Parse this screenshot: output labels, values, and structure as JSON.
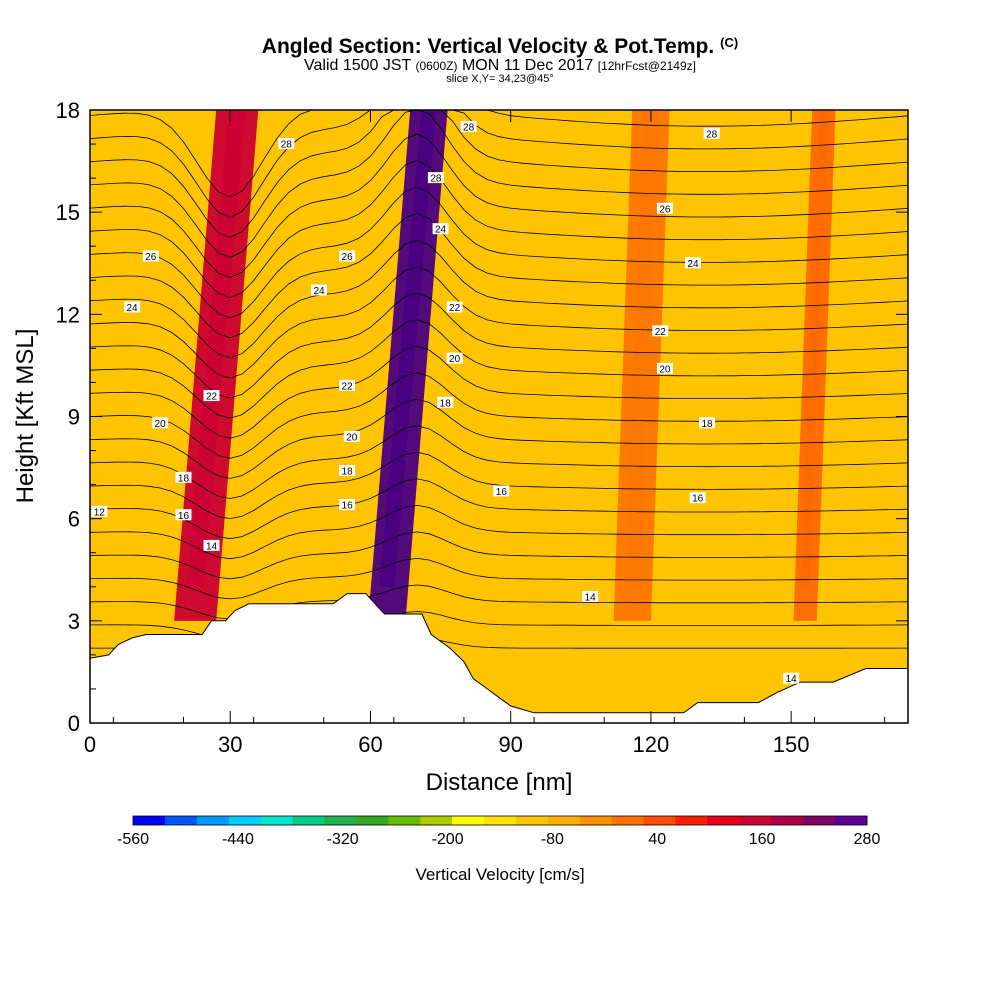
{
  "header": {
    "title": "Angled Section: Vertical Velocity & Pot.Temp.",
    "title_units": "(C)",
    "subtitle_a": "Valid 1500 JST",
    "subtitle_b": "(0600Z)",
    "subtitle_c": "MON 11 Dec 2017",
    "subtitle_d": "[12hrFcst@2149z]",
    "slice": "slice X,Y= 34,23@45°"
  },
  "chart_data": {
    "type": "heatmap",
    "xlabel": "Distance [nm]",
    "ylabel": "Height [Kft MSL]",
    "xlim": [
      0,
      175
    ],
    "ylim": [
      0,
      18
    ],
    "x_ticks": [
      "0",
      "30",
      "60",
      "90",
      "120",
      "150"
    ],
    "x_tick_values": [
      0,
      30,
      60,
      90,
      120,
      150
    ],
    "y_ticks": [
      "0",
      "3",
      "6",
      "9",
      "12",
      "15",
      "18"
    ],
    "y_tick_values": [
      0,
      3,
      6,
      9,
      12,
      15,
      18
    ],
    "background_fill": "#ffc400",
    "velocity_bands": [
      {
        "x_center": 27,
        "width": 9,
        "value": 190,
        "color": "#cc0033"
      },
      {
        "x_center": 68,
        "width": 8,
        "value": 280,
        "color": "#4b0082"
      },
      {
        "x_center": 118,
        "width": 8,
        "value": 60,
        "color": "#ff7700"
      },
      {
        "x_center": 155,
        "width": 5,
        "value": 60,
        "color": "#ff6a00"
      }
    ],
    "colorbar": {
      "title": "Vertical Velocity [cm/s]",
      "tick_labels": [
        "-560",
        "-440",
        "-320",
        "-200",
        "-80",
        "40",
        "160",
        "280"
      ],
      "range": [
        -560,
        280
      ],
      "colors": [
        "#0000ff",
        "#0055ff",
        "#0099ff",
        "#00ccff",
        "#00e5cc",
        "#00cc88",
        "#22b14c",
        "#33aa22",
        "#66bb00",
        "#aacc00",
        "#ffff00",
        "#ffe000",
        "#ffc400",
        "#ffae00",
        "#ff9000",
        "#ff7000",
        "#ff4d00",
        "#ff2000",
        "#e60020",
        "#cc0033",
        "#aa0044",
        "#800066",
        "#5a0099"
      ]
    },
    "isotherm_labels": [
      "12",
      "14",
      "16",
      "18",
      "20",
      "22",
      "24",
      "26",
      "28"
    ],
    "isotherm_label_positions": [
      {
        "text": "12",
        "x": 2,
        "y": 6.2
      },
      {
        "text": "14",
        "x": 26,
        "y": 5.2
      },
      {
        "text": "16",
        "x": 20,
        "y": 6.1
      },
      {
        "text": "18",
        "x": 20,
        "y": 7.2
      },
      {
        "text": "20",
        "x": 15,
        "y": 8.8
      },
      {
        "text": "22",
        "x": 26,
        "y": 9.6
      },
      {
        "text": "24",
        "x": 9,
        "y": 12.2
      },
      {
        "text": "26",
        "x": 13,
        "y": 13.7
      },
      {
        "text": "28",
        "x": 42,
        "y": 17.0
      },
      {
        "text": "24",
        "x": 49,
        "y": 12.7
      },
      {
        "text": "26",
        "x": 55,
        "y": 13.7
      },
      {
        "text": "22",
        "x": 55,
        "y": 9.9
      },
      {
        "text": "20",
        "x": 56,
        "y": 8.4
      },
      {
        "text": "18",
        "x": 55,
        "y": 7.4
      },
      {
        "text": "16",
        "x": 55,
        "y": 6.4
      },
      {
        "text": "28",
        "x": 74,
        "y": 16.0
      },
      {
        "text": "28",
        "x": 81,
        "y": 17.5
      },
      {
        "text": "24",
        "x": 75,
        "y": 14.5
      },
      {
        "text": "22",
        "x": 78,
        "y": 12.2
      },
      {
        "text": "20",
        "x": 78,
        "y": 10.7
      },
      {
        "text": "18",
        "x": 76,
        "y": 9.4
      },
      {
        "text": "16",
        "x": 88,
        "y": 6.8
      },
      {
        "text": "14",
        "x": 107,
        "y": 3.7
      },
      {
        "text": "28",
        "x": 133,
        "y": 17.3
      },
      {
        "text": "26",
        "x": 123,
        "y": 15.1
      },
      {
        "text": "24",
        "x": 129,
        "y": 13.5
      },
      {
        "text": "22",
        "x": 122,
        "y": 11.5
      },
      {
        "text": "20",
        "x": 123,
        "y": 10.4
      },
      {
        "text": "18",
        "x": 132,
        "y": 8.8
      },
      {
        "text": "16",
        "x": 130,
        "y": 6.6
      },
      {
        "text": "14",
        "x": 150,
        "y": 1.3
      }
    ],
    "terrain": [
      [
        0,
        1.9
      ],
      [
        4,
        2.0
      ],
      [
        6,
        2.3
      ],
      [
        9,
        2.5
      ],
      [
        12,
        2.6
      ],
      [
        24,
        2.6
      ],
      [
        26,
        3.0
      ],
      [
        29,
        3.0
      ],
      [
        31,
        3.3
      ],
      [
        34,
        3.5
      ],
      [
        52,
        3.5
      ],
      [
        55,
        3.8
      ],
      [
        59,
        3.8
      ],
      [
        61,
        3.5
      ],
      [
        63,
        3.2
      ],
      [
        71,
        3.2
      ],
      [
        73,
        2.6
      ],
      [
        77,
        2.2
      ],
      [
        80,
        1.8
      ],
      [
        82,
        1.3
      ],
      [
        85,
        1.0
      ],
      [
        88,
        0.7
      ],
      [
        90,
        0.5
      ],
      [
        95,
        0.3
      ],
      [
        127,
        0.3
      ],
      [
        130,
        0.6
      ],
      [
        143,
        0.6
      ],
      [
        147,
        0.9
      ],
      [
        152,
        1.2
      ],
      [
        159,
        1.2
      ],
      [
        166,
        1.6
      ],
      [
        175,
        1.6
      ]
    ]
  }
}
